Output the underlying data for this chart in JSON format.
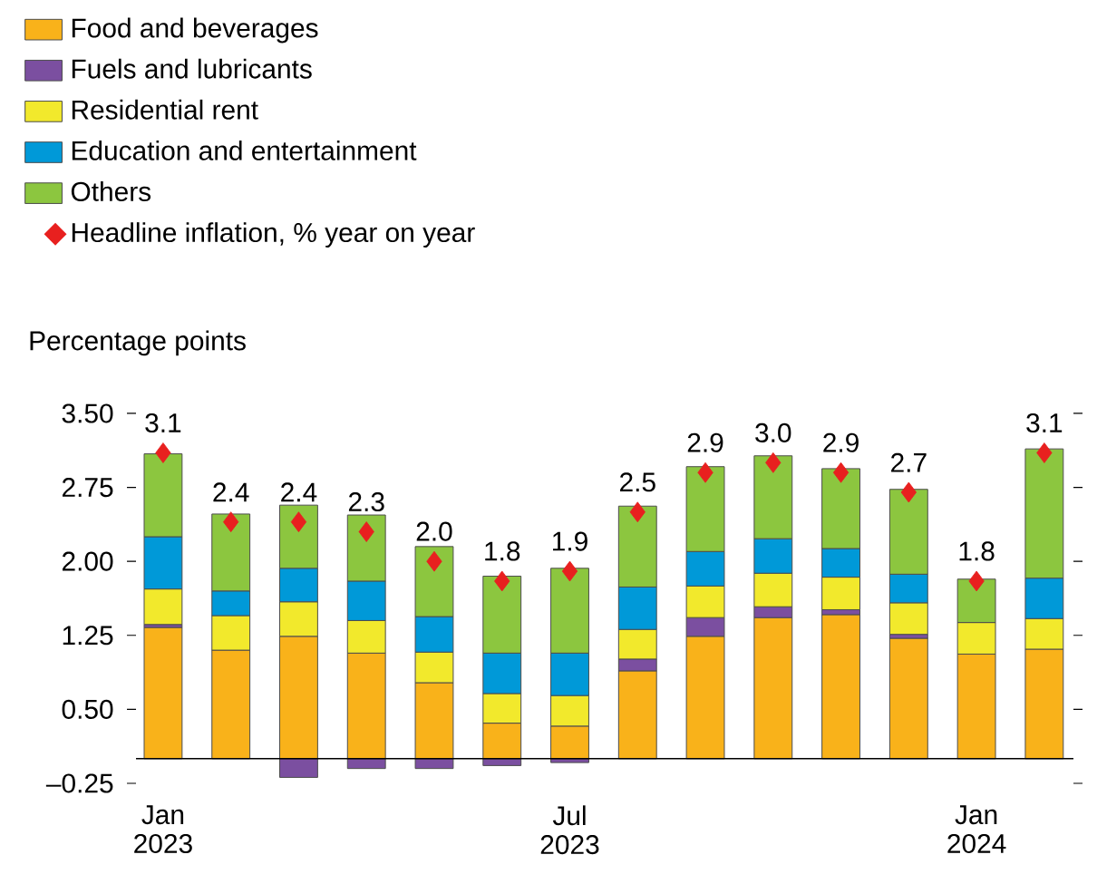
{
  "chart_data": {
    "type": "bar",
    "stacked": true,
    "ylabel": "Percentage points",
    "categories": [
      "Jan 2023",
      null,
      null,
      null,
      null,
      null,
      "Jul 2023",
      null,
      null,
      null,
      null,
      null,
      "Jan 2024",
      null
    ],
    "ylim": [
      -0.25,
      3.5
    ],
    "yticks": [
      {
        "value": -0.25,
        "label": "–0.25"
      },
      {
        "value": 0.5,
        "label": "0.50"
      },
      {
        "value": 1.25,
        "label": "1.25"
      },
      {
        "value": 2,
        "label": "2.00"
      },
      {
        "value": 2.75,
        "label": "2.75"
      },
      {
        "value": 3.5,
        "label": "3.50"
      }
    ],
    "legend": "top left",
    "series": [
      {
        "name": "Food and beverages",
        "color": "#f9b21a",
        "values": [
          1.33,
          1.1,
          1.24,
          1.07,
          0.77,
          0.36,
          0.33,
          0.89,
          1.24,
          1.43,
          1.46,
          1.22,
          1.06,
          1.11
        ]
      },
      {
        "name": "Fuels and lubricants",
        "color": "#7b4fa0",
        "values": [
          0.03,
          null,
          -0.19,
          -0.1,
          -0.1,
          -0.07,
          -0.04,
          0.12,
          0.19,
          0.11,
          0.05,
          0.04,
          null,
          0
        ]
      },
      {
        "name": "Residential rent",
        "color": "#f2e92c",
        "values": [
          0.36,
          0.35,
          0.35,
          0.33,
          0.31,
          0.3,
          0.31,
          0.3,
          0.32,
          0.34,
          0.33,
          0.32,
          0.32,
          0.31
        ]
      },
      {
        "name": "Education and entertainment",
        "color": "#0099d8",
        "values": [
          0.53,
          0.25,
          0.34,
          0.4,
          0.36,
          0.41,
          0.43,
          0.43,
          0.35,
          0.35,
          0.29,
          0.29,
          0,
          0.41
        ]
      },
      {
        "name": "Others",
        "color": "#8cc63f",
        "values": [
          0.84,
          0.78,
          0.64,
          0.67,
          0.71,
          0.78,
          0.86,
          0.82,
          0.86,
          0.84,
          0.81,
          0.86,
          0.44,
          1.31
        ]
      },
      {
        "name": "Headline inflation, % year on year",
        "type": "scatter",
        "marker": "diamond",
        "color": "#e8201f",
        "values": [
          3.1,
          2.4,
          2.4,
          2.3,
          2.0,
          1.8,
          1.9,
          2.5,
          2.9,
          3.0,
          2.9,
          2.7,
          1.8,
          3.1
        ],
        "value_labels": [
          "3.1",
          "2.4",
          "2.4",
          "2.3",
          "2.0",
          "1.8",
          "1.9",
          "2.5",
          "2.9",
          "3.0",
          "2.9",
          "2.7",
          "1.8",
          "3.1"
        ]
      }
    ]
  }
}
